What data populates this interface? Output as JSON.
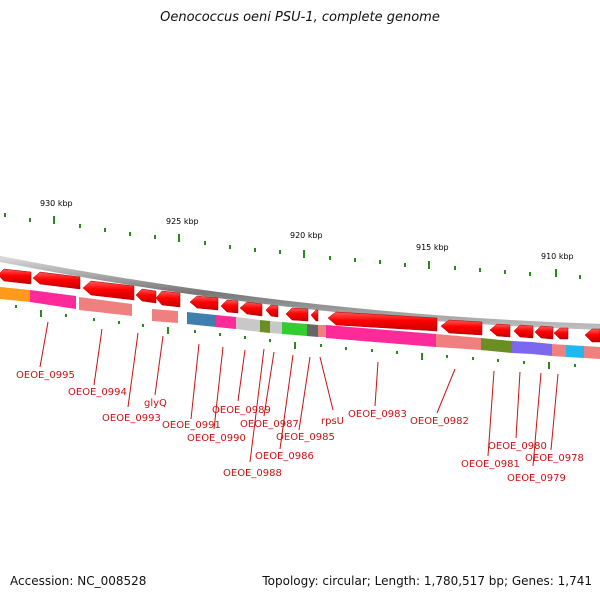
{
  "title": "Oenococcus oeni PSU-1, complete genome",
  "footer": {
    "accession": "Accession: NC_008528",
    "topology": "Topology: circular; Length: 1,780,517 bp; Genes: 1,741"
  },
  "ticks": [
    "930 kbp",
    "925 kbp",
    "920 kbp",
    "915 kbp",
    "910 kbp"
  ],
  "genes": [
    "OEOE_0995",
    "OEOE_0994",
    "OEOE_0993",
    "glyQ",
    "OEOE_0991",
    "OEOE_0990",
    "OEOE_0989",
    "OEOE_0988",
    "OEOE_0987",
    "OEOE_0986",
    "OEOE_0985",
    "rpsU",
    "OEOE_0983",
    "OEOE_0982",
    "OEOE_0981",
    "OEOE_0980",
    "OEOE_0979",
    "OEOE_0978"
  ],
  "colors": {
    "arrow": "#ff0000",
    "label": "#cc1111",
    "tick": "#2a8a1e",
    "backbone": "#888888"
  }
}
